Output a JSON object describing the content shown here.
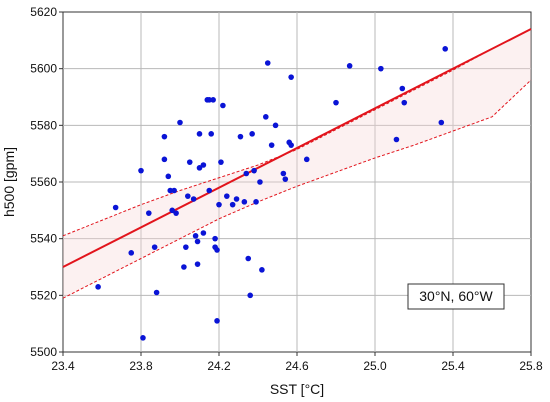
{
  "chart_data": {
    "type": "scatter",
    "xlabel": "SST [°C]",
    "ylabel": "h500 [gpm]",
    "xlim": [
      23.4,
      25.8
    ],
    "ylim": [
      5500,
      5620
    ],
    "xticks": [
      "23.4",
      "23.8",
      "24.2",
      "24.6",
      "25.0",
      "25.4",
      "25.8"
    ],
    "yticks": [
      "5500",
      "5520",
      "5540",
      "5560",
      "5580",
      "5600",
      "5620"
    ],
    "grid": true,
    "annotation": "30°N, 60°W",
    "colors": {
      "points": "#0a14d6",
      "regression": "#e2141c",
      "confidence": "#e2141c",
      "grid": "#b8b8b8"
    },
    "points": [
      [
        23.58,
        5523
      ],
      [
        23.67,
        5551
      ],
      [
        23.75,
        5535
      ],
      [
        23.8,
        5564
      ],
      [
        23.81,
        5505
      ],
      [
        23.84,
        5549
      ],
      [
        23.87,
        5537
      ],
      [
        23.88,
        5521
      ],
      [
        23.92,
        5576
      ],
      [
        23.92,
        5568
      ],
      [
        23.94,
        5562
      ],
      [
        23.95,
        5557
      ],
      [
        23.96,
        5550
      ],
      [
        23.97,
        5557
      ],
      [
        23.98,
        5549
      ],
      [
        24.0,
        5581
      ],
      [
        24.02,
        5530
      ],
      [
        24.03,
        5537
      ],
      [
        24.04,
        5555
      ],
      [
        24.05,
        5567
      ],
      [
        24.07,
        5554
      ],
      [
        24.08,
        5541
      ],
      [
        24.09,
        5539
      ],
      [
        24.09,
        5531
      ],
      [
        24.1,
        5565
      ],
      [
        24.1,
        5577
      ],
      [
        24.12,
        5566
      ],
      [
        24.12,
        5542
      ],
      [
        24.14,
        5589
      ],
      [
        24.15,
        5589
      ],
      [
        24.15,
        5557
      ],
      [
        24.16,
        5577
      ],
      [
        24.17,
        5589
      ],
      [
        24.18,
        5537
      ],
      [
        24.18,
        5540
      ],
      [
        24.19,
        5536
      ],
      [
        24.19,
        5511
      ],
      [
        24.2,
        5552
      ],
      [
        24.21,
        5567
      ],
      [
        24.22,
        5587
      ],
      [
        24.24,
        5555
      ],
      [
        24.27,
        5552
      ],
      [
        24.29,
        5554
      ],
      [
        24.31,
        5576
      ],
      [
        24.33,
        5553
      ],
      [
        24.34,
        5563
      ],
      [
        24.35,
        5533
      ],
      [
        24.36,
        5520
      ],
      [
        24.37,
        5577
      ],
      [
        24.38,
        5564
      ],
      [
        24.39,
        5553
      ],
      [
        24.41,
        5560
      ],
      [
        24.42,
        5529
      ],
      [
        24.44,
        5583
      ],
      [
        24.45,
        5602
      ],
      [
        24.47,
        5573
      ],
      [
        24.49,
        5580
      ],
      [
        24.53,
        5563
      ],
      [
        24.54,
        5561
      ],
      [
        24.56,
        5574
      ],
      [
        24.57,
        5597
      ],
      [
        24.57,
        5573
      ],
      [
        24.65,
        5568
      ],
      [
        24.8,
        5588
      ],
      [
        24.87,
        5601
      ],
      [
        25.03,
        5600
      ],
      [
        25.11,
        5575
      ],
      [
        25.14,
        5593
      ],
      [
        25.15,
        5588
      ],
      [
        25.34,
        5581
      ],
      [
        25.36,
        5607
      ]
    ],
    "regression_line": {
      "x": [
        23.4,
        25.8
      ],
      "y": [
        5530,
        5614
      ]
    },
    "confidence_upper": {
      "x": [
        23.4,
        23.6,
        23.8,
        24.0,
        24.2,
        24.4,
        24.6,
        24.8,
        25.0,
        25.2,
        25.4,
        25.6,
        25.8
      ],
      "y": [
        5541,
        5546.5,
        5552,
        5557,
        5561.5,
        5566,
        5571.5,
        5578.5,
        5585.5,
        5592.5,
        5599.5,
        5607,
        5614
      ]
    },
    "confidence_lower": {
      "x": [
        23.4,
        23.6,
        23.8,
        24.0,
        24.2,
        24.4,
        24.6,
        24.8,
        25.0,
        25.2,
        25.4,
        25.6,
        25.8
      ],
      "y": [
        5519,
        5526,
        5533,
        5540,
        5547,
        5553,
        5558.5,
        5563.5,
        5568.5,
        5573,
        5578,
        5583,
        5596
      ]
    }
  }
}
